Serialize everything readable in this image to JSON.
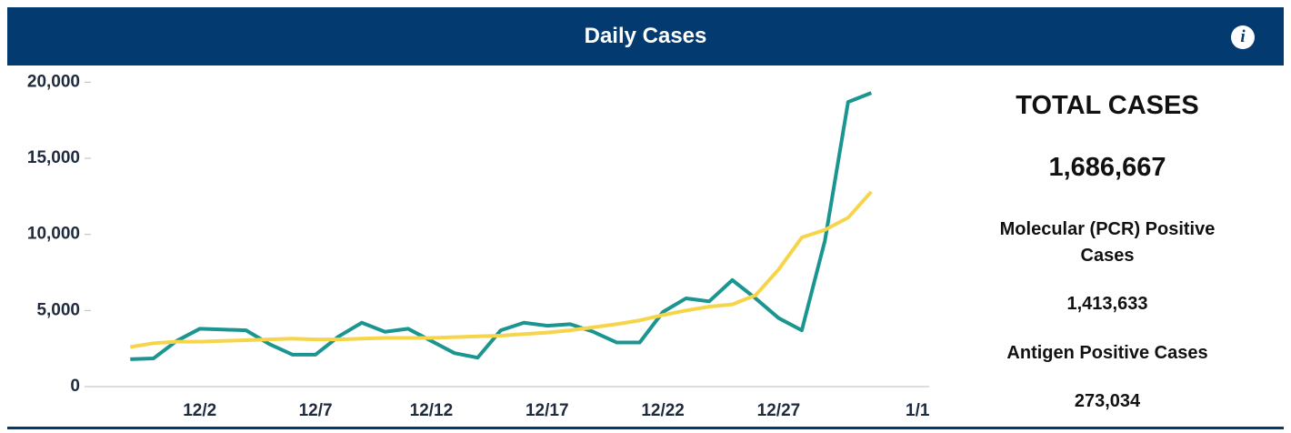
{
  "header": {
    "title": "Daily Cases"
  },
  "chart_data": {
    "type": "line",
    "series": [
      {
        "color": "#1b9590",
        "values": [
          1800,
          1850,
          3000,
          3800,
          3750,
          3700,
          2800,
          2100,
          2100,
          3300,
          4200,
          3600,
          3800,
          3000,
          2200,
          1900,
          3700,
          4200,
          4000,
          4100,
          3600,
          2900,
          2900,
          4900,
          5800,
          5600,
          7000,
          5800,
          4500,
          3700,
          9600,
          18700,
          19300
        ]
      },
      {
        "color": "#f6d54a",
        "values": [
          2600,
          2850,
          2950,
          2950,
          3000,
          3050,
          3100,
          3150,
          3100,
          3100,
          3150,
          3200,
          3200,
          3200,
          3250,
          3300,
          3350,
          3450,
          3550,
          3700,
          3900,
          4100,
          4350,
          4700,
          5000,
          5250,
          5400,
          6000,
          7700,
          9800,
          10300,
          11100,
          12800
        ]
      }
    ],
    "xlim": [
      -1.7,
      34.5
    ],
    "xticks": [
      {
        "value": 3,
        "label": "12/2"
      },
      {
        "value": 8,
        "label": "12/7"
      },
      {
        "value": 13,
        "label": "12/12"
      },
      {
        "value": 18,
        "label": "12/17"
      },
      {
        "value": 23,
        "label": "12/22"
      },
      {
        "value": 28,
        "label": "12/27"
      },
      {
        "value": 34,
        "label": "1/1"
      }
    ],
    "ylim": [
      0,
      20500
    ],
    "yticks": [
      0,
      {
        "value": 5000,
        "label": "5,000"
      },
      {
        "value": 10000,
        "label": "10,000"
      },
      {
        "value": 15000,
        "label": "15,000"
      },
      {
        "value": 20000,
        "label": "20,000"
      }
    ]
  },
  "summary": {
    "total_label": "TOTAL CASES",
    "total_value": "1,686,667",
    "pcr_label": "Molecular (PCR) Positive Cases",
    "pcr_value": "1,413,633",
    "antigen_label": "Antigen Positive Cases",
    "antigen_value": "273,034"
  }
}
